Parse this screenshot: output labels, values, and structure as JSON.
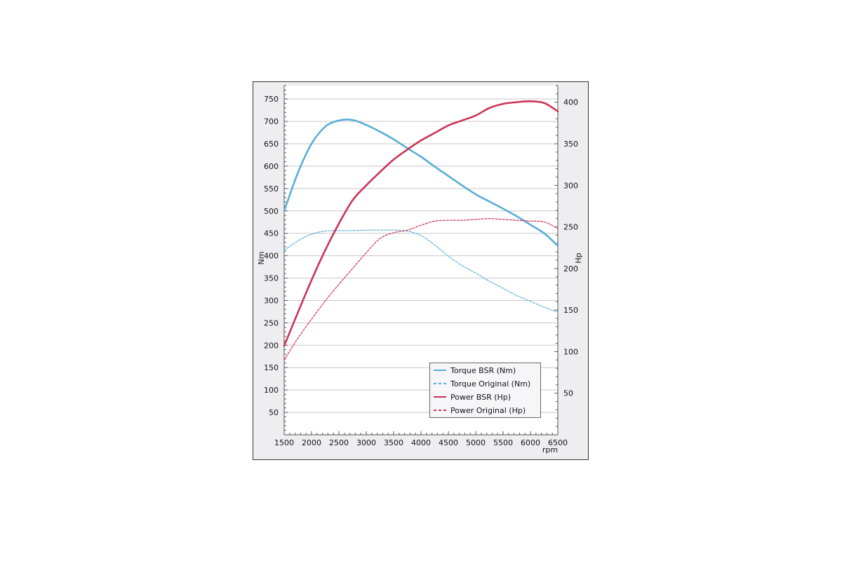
{
  "chart_data": {
    "type": "line",
    "title": "",
    "xlabel": "rpm",
    "ylabel_left": "Nm",
    "ylabel_right": "Hp",
    "xlim": [
      1500,
      6500
    ],
    "ylim_left": [
      0,
      780
    ],
    "ylim_right": [
      0,
      420
    ],
    "x_ticks": [
      1500,
      2000,
      2500,
      3000,
      3500,
      4000,
      4500,
      5000,
      5500,
      6000,
      6500
    ],
    "y_left_ticks": [
      50,
      100,
      150,
      200,
      250,
      300,
      350,
      400,
      450,
      500,
      550,
      600,
      650,
      700,
      750
    ],
    "y_right_ticks": [
      50,
      100,
      150,
      200,
      250,
      300,
      350,
      400
    ],
    "grid": true,
    "legend_position": "bottom-right",
    "colors": {
      "torque": "#5aadd6",
      "power": "#cc3355",
      "plot_bg": "#ffffff",
      "frame_bg": "#eeeef0",
      "grid": "#c8c8c8"
    },
    "series": [
      {
        "name": "Torque BSR (Nm)",
        "axis": "left",
        "style": "solid",
        "x": [
          1500,
          1750,
          2000,
          2250,
          2500,
          2750,
          3000,
          3250,
          3500,
          3750,
          4000,
          4250,
          4500,
          4750,
          5000,
          5250,
          5500,
          5750,
          6000,
          6250,
          6500
        ],
        "y": [
          500,
          585,
          650,
          688,
          702,
          703,
          692,
          677,
          660,
          640,
          621,
          599,
          578,
          557,
          537,
          521,
          505,
          488,
          469,
          450,
          422
        ]
      },
      {
        "name": "Torque Original (Nm)",
        "axis": "left",
        "style": "dashed",
        "x": [
          1500,
          1750,
          2000,
          2250,
          2500,
          2750,
          3000,
          3250,
          3500,
          3750,
          4000,
          4250,
          4500,
          4750,
          5000,
          5250,
          5500,
          5750,
          6000,
          6250,
          6500
        ],
        "y": [
          412,
          433,
          448,
          455,
          456,
          456,
          457,
          457,
          457,
          455,
          445,
          424,
          399,
          378,
          361,
          343,
          327,
          311,
          298,
          285,
          274
        ]
      },
      {
        "name": "Power BSR (Hp)",
        "axis": "right",
        "style": "solid",
        "x": [
          1500,
          1750,
          2000,
          2250,
          2500,
          2750,
          3000,
          3250,
          3500,
          3750,
          4000,
          4250,
          4500,
          4750,
          5000,
          5250,
          5500,
          5750,
          6000,
          6250,
          6500
        ],
        "y": [
          107,
          147,
          186,
          222,
          254,
          282,
          300,
          316,
          331,
          343,
          354,
          363,
          372,
          378,
          384,
          393,
          398,
          400,
          401,
          399,
          389
        ]
      },
      {
        "name": "Power Original (Hp)",
        "axis": "right",
        "style": "dashed",
        "x": [
          1500,
          1750,
          2000,
          2250,
          2500,
          2750,
          3000,
          3250,
          3500,
          3750,
          4000,
          4250,
          4500,
          4750,
          5000,
          5250,
          5500,
          5750,
          6000,
          6250,
          6500
        ],
        "y": [
          90,
          116,
          139,
          161,
          181,
          200,
          219,
          236,
          243,
          246,
          252,
          257,
          258,
          258,
          259,
          260,
          259,
          258,
          257,
          256,
          248
        ]
      }
    ]
  }
}
